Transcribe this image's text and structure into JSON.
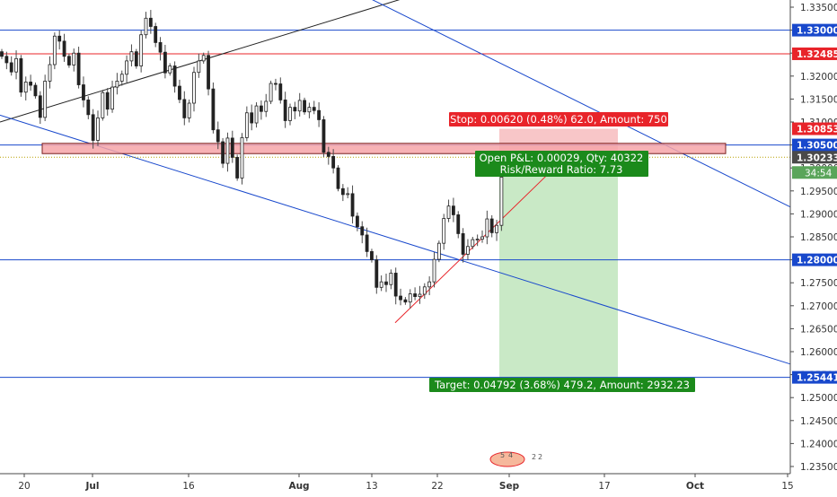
{
  "chart_data": {
    "type": "candlestick",
    "instrument_hint": "",
    "y_axis": {
      "range": [
        1.2317,
        1.362
      ],
      "ticks": [
        1.335,
        1.33,
        1.325,
        1.32,
        1.315,
        1.31,
        1.305,
        1.3,
        1.295,
        1.29,
        1.285,
        1.28,
        1.275,
        1.27,
        1.265,
        1.26,
        1.255,
        1.25,
        1.245,
        1.24,
        1.235
      ],
      "tick_labels": [
        "1.33500",
        "1.33000",
        "1.32500",
        "1.32000",
        "1.31500",
        "1.31000",
        "1.30500",
        "1.30000",
        "1.29500",
        "1.29000",
        "1.28500",
        "1.28000",
        "1.27500",
        "1.27000",
        "1.26500",
        "1.26000",
        "1.25500",
        "1.25000",
        "1.24500",
        "1.24000",
        "1.23500"
      ],
      "highlighted_labels": [
        {
          "value": 1.33,
          "text": "1.33000",
          "color": "#1848cc"
        },
        {
          "value": 1.32485,
          "text": "1.32485",
          "color": "#e8242a"
        },
        {
          "value": 1.30853,
          "text": "1.30853",
          "color": "#e8242a"
        },
        {
          "value": 1.305,
          "text": "1.30500",
          "color": "#1848cc"
        },
        {
          "value": 1.30233,
          "text": "1.30233",
          "color": "#4a4a4a"
        },
        {
          "value": 1.28,
          "text": "1.28000",
          "color": "#1848cc"
        },
        {
          "value": 1.25441,
          "text": "1.25441",
          "color": "#1848cc"
        }
      ],
      "countdown_label": "34:54"
    },
    "x_axis": {
      "labels": [
        "20",
        "Jul",
        "16",
        "Aug",
        "13",
        "22",
        "Sep",
        "17",
        "Oct",
        "15"
      ],
      "bold_labels": [
        "Jul",
        "Aug",
        "Sep",
        "Oct"
      ]
    },
    "price_series": {
      "start_bar_x": 2,
      "bar_spacing": 5.35,
      "closes": [
        1.3243,
        1.3229,
        1.3209,
        1.3238,
        1.3165,
        1.3187,
        1.318,
        1.3157,
        1.311,
        1.3189,
        1.3225,
        1.3287,
        1.3276,
        1.3243,
        1.3224,
        1.325,
        1.3181,
        1.3148,
        1.3116,
        1.306,
        1.3109,
        1.3164,
        1.3128,
        1.3176,
        1.3189,
        1.3204,
        1.3233,
        1.3253,
        1.3222,
        1.329,
        1.3326,
        1.3308,
        1.3273,
        1.3252,
        1.3207,
        1.3222,
        1.3178,
        1.3149,
        1.3109,
        1.3141,
        1.3208,
        1.3233,
        1.3245,
        1.3172,
        1.3083,
        1.3057,
        1.301,
        1.3065,
        1.3023,
        1.2978,
        1.3066,
        1.312,
        1.3098,
        1.3135,
        1.3123,
        1.3145,
        1.3184,
        1.3183,
        1.3148,
        1.3103,
        1.3132,
        1.3124,
        1.3147,
        1.3122,
        1.3132,
        1.3125,
        1.3105,
        1.3034,
        1.3025,
        1.3,
        1.2955,
        1.2942,
        1.2944,
        1.2895,
        1.2872,
        1.2854,
        1.2818,
        1.28,
        1.274,
        1.2752,
        1.2746,
        1.2771,
        1.2721,
        1.2713,
        1.2708,
        1.2726,
        1.272,
        1.2725,
        1.2741,
        1.2752,
        1.2801,
        1.2836,
        1.289,
        1.2917,
        1.2898,
        1.2857,
        1.2812,
        1.2829,
        1.2844,
        1.2845,
        1.285,
        1.2889,
        1.2859,
        1.2875,
        1.298
      ],
      "colors": {
        "up": "#4a4a4a",
        "down": "#4a4a4a",
        "body": "#222222"
      }
    },
    "lines": [
      {
        "name": "resistance-1.33000",
        "kind": "horizontal",
        "value": 1.33,
        "color": "#1848cc"
      },
      {
        "name": "resistance-1.32485",
        "kind": "horizontal",
        "value": 1.32485,
        "color": "#e8242a"
      },
      {
        "name": "level-1.30500",
        "kind": "horizontal",
        "value": 1.305,
        "color": "#1848cc"
      },
      {
        "name": "level-1.28000",
        "kind": "horizontal",
        "value": 1.28,
        "color": "#1848cc"
      },
      {
        "name": "target-1.25441",
        "kind": "horizontal",
        "value": 1.25441,
        "color": "#1848cc"
      },
      {
        "name": "channel-upper",
        "kind": "trend",
        "from": [
          0,
          1.31
        ],
        "to": [
          880,
          1.3627
        ],
        "color": "#222222"
      },
      {
        "name": "channel-desc-top",
        "kind": "trend",
        "from": [
          155,
          1.3618
        ],
        "to": [
          880,
          1.2915
        ],
        "color": "#1848cc"
      },
      {
        "name": "channel-desc-bottom",
        "kind": "trend",
        "from": [
          0,
          1.3115
        ],
        "to": [
          880,
          1.2573
        ],
        "color": "#1848cc"
      },
      {
        "name": "support-trendline",
        "kind": "trend",
        "from": [
          440,
          1.2663
        ],
        "to": [
          612,
          1.299
        ],
        "color": "#e8242a"
      }
    ],
    "zones": [
      {
        "name": "resistance-zone",
        "from_x": 47,
        "to_x": 808,
        "top": 1.30535,
        "bottom": 1.30312,
        "fill": "#f6a5a8",
        "stroke": "#7a1e1e"
      }
    ],
    "position": {
      "from_x": 556,
      "to_x": 688,
      "stop": 1.30853,
      "entry": 1.30233,
      "target": 1.25441,
      "stop_fill": "#f8c6c8",
      "target_fill": "#c9e9c6",
      "stop_label": "Stop: 0.00620 (0.48%) 62.0, Amount: 750",
      "pnl_label_1": "Open P&L: 0.00029, Qty: 40322",
      "pnl_label_2": "Risk/Reward Ratio: 7.73",
      "target_label": "Target: 0.04792 (3.68%) 479.2, Amount: 2932.23"
    },
    "current_price": {
      "value": 1.30233,
      "color": "#1b8a1b"
    }
  }
}
